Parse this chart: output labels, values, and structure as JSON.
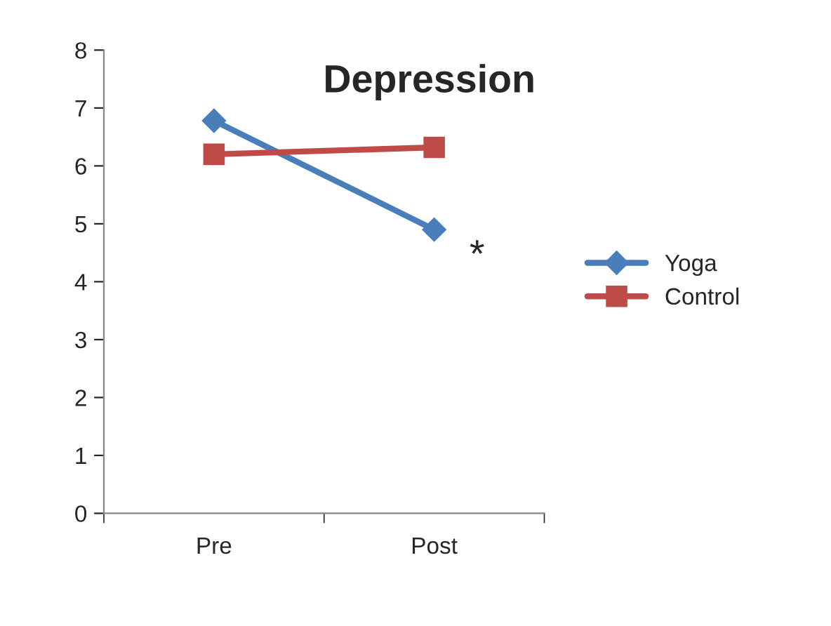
{
  "chart_data": {
    "type": "line",
    "title": "Depression",
    "categories": [
      "Pre",
      "Post"
    ],
    "series": [
      {
        "name": "Yoga",
        "color": "#4a7ebb",
        "values": [
          6.78,
          4.9
        ],
        "marker": "diamond"
      },
      {
        "name": "Control",
        "color": "#be4b48",
        "values": [
          6.2,
          6.32
        ],
        "marker": "square"
      }
    ],
    "ylim": [
      0,
      8
    ],
    "yticks": [
      0,
      1,
      2,
      3,
      4,
      5,
      6,
      7,
      8
    ],
    "annotations": [
      {
        "text": "*",
        "x": "Post",
        "y": 4.9
      }
    ],
    "grid": false,
    "legend": "right",
    "line_style": "solid"
  }
}
